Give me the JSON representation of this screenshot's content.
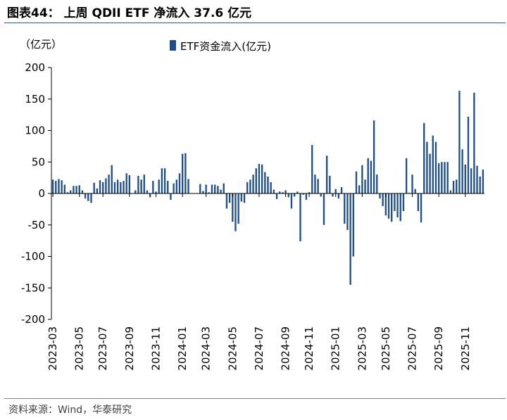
{
  "header": {
    "title": "图表44： 上周 QDII ETF 净流入 37.6 亿元"
  },
  "footer": {
    "source": "资料来源：Wind，华泰研究"
  },
  "colors": {
    "bar": "#1f4e8c",
    "axis": "#000000",
    "accent_rule": "#2e5597"
  },
  "chart_data": {
    "type": "bar",
    "title": "上周 QDII ETF 净流入 37.6 亿元",
    "ylabel": "（亿元）",
    "xlabel": "",
    "legend": [
      "ETF资金流入(亿元)"
    ],
    "legend_position": "top-center",
    "ylim": [
      -200,
      200
    ],
    "yticks": [
      200,
      150,
      100,
      50,
      0,
      -50,
      -100,
      -150,
      -200
    ],
    "grid": false,
    "x_tick_labels": [
      "2023-03",
      "2023-05",
      "2023-07",
      "2023-09",
      "2023-11",
      "2024-01",
      "2024-03",
      "2024-05",
      "2024-07",
      "2024-09",
      "2024-11",
      "2025-01",
      "2025-03",
      "2025-05",
      "2025-07",
      "2025-09",
      "2025-11"
    ],
    "x_tick_week_index": [
      0,
      9,
      17,
      26,
      35,
      44,
      52,
      61,
      70,
      79,
      87,
      96,
      105,
      113,
      122,
      131,
      140
    ],
    "series": [
      {
        "name": "ETF资金流入(亿元)",
        "values": [
          22,
          20,
          23,
          21,
          14,
          2,
          5,
          12,
          12,
          13,
          5,
          -8,
          -12,
          -15,
          17,
          8,
          21,
          18,
          24,
          30,
          45,
          18,
          22,
          18,
          20,
          32,
          29,
          0,
          5,
          28,
          22,
          30,
          5,
          -6,
          20,
          3,
          22,
          40,
          40,
          20,
          -10,
          16,
          22,
          32,
          63,
          64,
          23,
          0,
          0,
          0,
          15,
          4,
          14,
          2,
          14,
          14,
          12,
          6,
          16,
          -24,
          -15,
          -45,
          -60,
          -48,
          -13,
          -15,
          18,
          22,
          30,
          40,
          47,
          46,
          34,
          27,
          18,
          6,
          -9,
          3,
          2,
          5,
          -6,
          -24,
          -5,
          3,
          -76,
          -2,
          -10,
          2,
          77,
          30,
          23,
          -5,
          -50,
          60,
          28,
          -5,
          7,
          -8,
          10,
          -48,
          -58,
          -145,
          -100,
          35,
          13,
          45,
          22,
          56,
          52,
          116,
          30,
          -8,
          -20,
          -35,
          -40,
          -45,
          -28,
          -38,
          -44,
          -28,
          56,
          1,
          30,
          7,
          -28,
          -46,
          112,
          82,
          63,
          92,
          82,
          48,
          50,
          50,
          50,
          5,
          20,
          22,
          163,
          70,
          46,
          122,
          40,
          160,
          44,
          27,
          38
        ]
      }
    ]
  }
}
